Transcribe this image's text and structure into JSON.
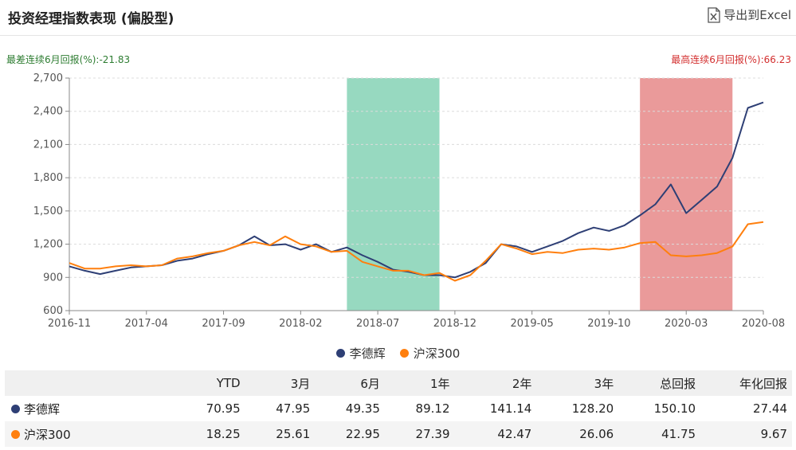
{
  "header": {
    "title": "投资经理指数表现 (偏股型)",
    "export_label": "导出到Excel",
    "export_icon": "excel-export-icon"
  },
  "notes": {
    "worst_label": "最差连续6月回报(%):",
    "worst_value": "-21.83",
    "best_label": "最高连续6月回报(%):",
    "best_value": "66.23"
  },
  "chart_data": {
    "type": "line",
    "x_axis_ticks": [
      "2016-11",
      "2017-04",
      "2017-09",
      "2018-02",
      "2018-07",
      "2018-12",
      "2019-05",
      "2019-10",
      "2020-03",
      "2020-08"
    ],
    "y_axis_ticks": [
      "600",
      "900",
      "1,200",
      "1,500",
      "1,800",
      "2,100",
      "2,400",
      "2,700"
    ],
    "ylim": [
      600,
      2700
    ],
    "xlim": [
      "2016-11",
      "2020-08"
    ],
    "grid": true,
    "legend_position": "bottom",
    "highlight_ranges": [
      {
        "kind": "worst",
        "start": "2018-05",
        "end": "2018-11",
        "color": "#97d9c0"
      },
      {
        "kind": "best",
        "start": "2019-12",
        "end": "2020-06",
        "color": "#ea9a9a"
      }
    ],
    "series": [
      {
        "name": "李德辉",
        "color": "#2e3f75",
        "points": [
          [
            "2016-11",
            1000
          ],
          [
            "2016-12",
            960
          ],
          [
            "2017-01",
            930
          ],
          [
            "2017-02",
            960
          ],
          [
            "2017-03",
            990
          ],
          [
            "2017-04",
            1000
          ],
          [
            "2017-05",
            1010
          ],
          [
            "2017-06",
            1050
          ],
          [
            "2017-07",
            1070
          ],
          [
            "2017-08",
            1110
          ],
          [
            "2017-09",
            1140
          ],
          [
            "2017-10",
            1190
          ],
          [
            "2017-11",
            1270
          ],
          [
            "2017-12",
            1190
          ],
          [
            "2018-01",
            1200
          ],
          [
            "2018-02",
            1150
          ],
          [
            "2018-03",
            1200
          ],
          [
            "2018-04",
            1130
          ],
          [
            "2018-05",
            1170
          ],
          [
            "2018-06",
            1100
          ],
          [
            "2018-07",
            1040
          ],
          [
            "2018-08",
            970
          ],
          [
            "2018-09",
            950
          ],
          [
            "2018-10",
            920
          ],
          [
            "2018-11",
            920
          ],
          [
            "2018-12",
            900
          ],
          [
            "2019-01",
            950
          ],
          [
            "2019-02",
            1030
          ],
          [
            "2019-03",
            1200
          ],
          [
            "2019-04",
            1180
          ],
          [
            "2019-05",
            1130
          ],
          [
            "2019-06",
            1180
          ],
          [
            "2019-07",
            1230
          ],
          [
            "2019-08",
            1300
          ],
          [
            "2019-09",
            1350
          ],
          [
            "2019-10",
            1320
          ],
          [
            "2019-11",
            1370
          ],
          [
            "2019-12",
            1460
          ],
          [
            "2020-01",
            1560
          ],
          [
            "2020-02",
            1740
          ],
          [
            "2020-03",
            1480
          ],
          [
            "2020-04",
            1600
          ],
          [
            "2020-05",
            1720
          ],
          [
            "2020-06",
            1980
          ],
          [
            "2020-07",
            2430
          ],
          [
            "2020-08",
            2480
          ]
        ]
      },
      {
        "name": "沪深300",
        "color": "#ff7f0e",
        "points": [
          [
            "2016-11",
            1030
          ],
          [
            "2016-12",
            980
          ],
          [
            "2017-01",
            980
          ],
          [
            "2017-02",
            1000
          ],
          [
            "2017-03",
            1010
          ],
          [
            "2017-04",
            1000
          ],
          [
            "2017-05",
            1010
          ],
          [
            "2017-06",
            1070
          ],
          [
            "2017-07",
            1090
          ],
          [
            "2017-08",
            1120
          ],
          [
            "2017-09",
            1140
          ],
          [
            "2017-10",
            1190
          ],
          [
            "2017-11",
            1220
          ],
          [
            "2017-12",
            1190
          ],
          [
            "2018-01",
            1270
          ],
          [
            "2018-02",
            1200
          ],
          [
            "2018-03",
            1180
          ],
          [
            "2018-04",
            1130
          ],
          [
            "2018-05",
            1140
          ],
          [
            "2018-06",
            1040
          ],
          [
            "2018-07",
            1000
          ],
          [
            "2018-08",
            960
          ],
          [
            "2018-09",
            960
          ],
          [
            "2018-10",
            920
          ],
          [
            "2018-11",
            940
          ],
          [
            "2018-12",
            870
          ],
          [
            "2019-01",
            920
          ],
          [
            "2019-02",
            1050
          ],
          [
            "2019-03",
            1200
          ],
          [
            "2019-04",
            1160
          ],
          [
            "2019-05",
            1110
          ],
          [
            "2019-06",
            1130
          ],
          [
            "2019-07",
            1120
          ],
          [
            "2019-08",
            1150
          ],
          [
            "2019-09",
            1160
          ],
          [
            "2019-10",
            1150
          ],
          [
            "2019-11",
            1170
          ],
          [
            "2019-12",
            1210
          ],
          [
            "2020-01",
            1220
          ],
          [
            "2020-02",
            1100
          ],
          [
            "2020-03",
            1090
          ],
          [
            "2020-04",
            1100
          ],
          [
            "2020-05",
            1120
          ],
          [
            "2020-06",
            1180
          ],
          [
            "2020-07",
            1380
          ],
          [
            "2020-08",
            1400
          ]
        ]
      }
    ]
  },
  "legend": [
    {
      "label": "李德辉",
      "color": "#2e3f75"
    },
    {
      "label": "沪深300",
      "color": "#ff7f0e"
    }
  ],
  "table": {
    "columns": [
      "",
      "YTD",
      "3月",
      "6月",
      "1年",
      "2年",
      "3年",
      "总回报",
      "年化回报"
    ],
    "rows": [
      {
        "name": "李德辉",
        "color": "#2e3f75",
        "values": [
          "70.95",
          "47.95",
          "49.35",
          "89.12",
          "141.14",
          "128.20",
          "150.10",
          "27.44"
        ]
      },
      {
        "name": "沪深300",
        "color": "#ff7f0e",
        "values": [
          "18.25",
          "25.61",
          "22.95",
          "27.39",
          "42.47",
          "26.06",
          "41.75",
          "9.67"
        ]
      }
    ]
  }
}
